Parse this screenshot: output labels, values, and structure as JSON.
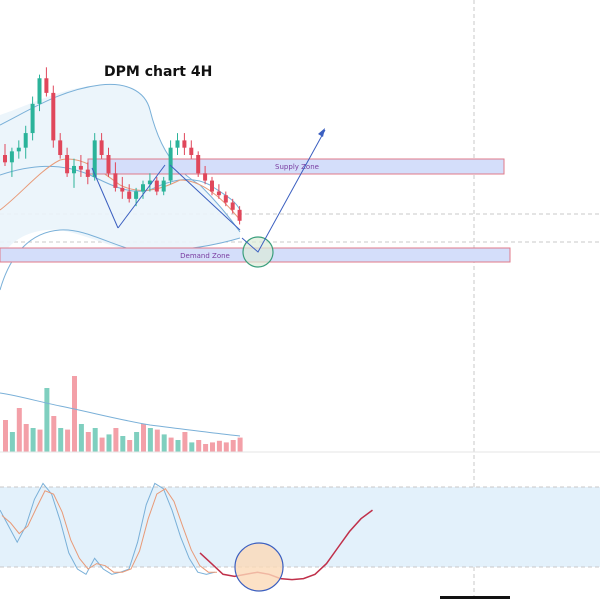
{
  "chart_data": {
    "type": "candlestick",
    "title": "DPM chart 4H",
    "timeframe": "4H",
    "colors": {
      "bull": "#2bb39a",
      "bear": "#e0475b",
      "volume_bull": "#7fcfbf",
      "volume_bear": "#f3a0a8",
      "bollinger": "#7ab0d8",
      "bollinger_fill": "#eaf4fb",
      "ema": "#e89a78",
      "zone_fill": "#d4defa",
      "zone_border": "#e07a8a",
      "arrow": "#3b5fc0",
      "stoch_k": "#7ab0d8",
      "stoch_d": "#e89a78",
      "stoch_forecast": "#c0304a",
      "stoch_band": "#e3f1fb",
      "circle_price_fill": "#dcebd9",
      "circle_price_stroke": "#3a9e7c",
      "circle_stoch_fill": "#fbd9b8",
      "circle_stoch_stroke": "#3b5fc0"
    },
    "candles": [
      {
        "o": 1.06,
        "h": 1.09,
        "l": 1.03,
        "c": 1.04
      },
      {
        "o": 1.04,
        "h": 1.08,
        "l": 1.0,
        "c": 1.07
      },
      {
        "o": 1.07,
        "h": 1.1,
        "l": 1.05,
        "c": 1.08
      },
      {
        "o": 1.08,
        "h": 1.14,
        "l": 1.05,
        "c": 1.12
      },
      {
        "o": 1.12,
        "h": 1.22,
        "l": 1.1,
        "c": 1.2
      },
      {
        "o": 1.2,
        "h": 1.28,
        "l": 1.18,
        "c": 1.27
      },
      {
        "o": 1.27,
        "h": 1.3,
        "l": 1.22,
        "c": 1.23
      },
      {
        "o": 1.23,
        "h": 1.25,
        "l": 1.08,
        "c": 1.1
      },
      {
        "o": 1.1,
        "h": 1.12,
        "l": 1.05,
        "c": 1.06
      },
      {
        "o": 1.06,
        "h": 1.08,
        "l": 1.0,
        "c": 1.01
      },
      {
        "o": 1.01,
        "h": 1.05,
        "l": 0.97,
        "c": 1.03
      },
      {
        "o": 1.03,
        "h": 1.06,
        "l": 1.0,
        "c": 1.02
      },
      {
        "o": 1.02,
        "h": 1.04,
        "l": 0.98,
        "c": 1.0
      },
      {
        "o": 1.0,
        "h": 1.12,
        "l": 0.99,
        "c": 1.1
      },
      {
        "o": 1.1,
        "h": 1.12,
        "l": 1.05,
        "c": 1.06
      },
      {
        "o": 1.06,
        "h": 1.08,
        "l": 1.0,
        "c": 1.01
      },
      {
        "o": 1.01,
        "h": 1.04,
        "l": 0.96,
        "c": 0.97
      },
      {
        "o": 0.97,
        "h": 1.0,
        "l": 0.94,
        "c": 0.96
      },
      {
        "o": 0.96,
        "h": 0.98,
        "l": 0.93,
        "c": 0.94
      },
      {
        "o": 0.94,
        "h": 0.97,
        "l": 0.92,
        "c": 0.96
      },
      {
        "o": 0.96,
        "h": 0.99,
        "l": 0.94,
        "c": 0.98
      },
      {
        "o": 0.98,
        "h": 1.01,
        "l": 0.96,
        "c": 0.99
      },
      {
        "o": 0.99,
        "h": 1.0,
        "l": 0.95,
        "c": 0.96
      },
      {
        "o": 0.96,
        "h": 1.0,
        "l": 0.95,
        "c": 0.99
      },
      {
        "o": 0.99,
        "h": 1.1,
        "l": 0.98,
        "c": 1.08
      },
      {
        "o": 1.08,
        "h": 1.12,
        "l": 1.06,
        "c": 1.1
      },
      {
        "o": 1.1,
        "h": 1.12,
        "l": 1.06,
        "c": 1.08
      },
      {
        "o": 1.08,
        "h": 1.1,
        "l": 1.05,
        "c": 1.06
      },
      {
        "o": 1.06,
        "h": 1.07,
        "l": 1.0,
        "c": 1.01
      },
      {
        "o": 1.01,
        "h": 1.03,
        "l": 0.98,
        "c": 0.99
      },
      {
        "o": 0.99,
        "h": 1.0,
        "l": 0.95,
        "c": 0.96
      },
      {
        "o": 0.96,
        "h": 0.98,
        "l": 0.94,
        "c": 0.95
      },
      {
        "o": 0.95,
        "h": 0.96,
        "l": 0.92,
        "c": 0.93
      },
      {
        "o": 0.93,
        "h": 0.94,
        "l": 0.9,
        "c": 0.91
      },
      {
        "o": 0.91,
        "h": 0.92,
        "l": 0.87,
        "c": 0.88
      }
    ],
    "volumes": [
      {
        "v": 0.4,
        "up": false
      },
      {
        "v": 0.25,
        "up": true
      },
      {
        "v": 0.55,
        "up": false
      },
      {
        "v": 0.35,
        "up": false
      },
      {
        "v": 0.3,
        "up": true
      },
      {
        "v": 0.28,
        "up": false
      },
      {
        "v": 0.8,
        "up": true
      },
      {
        "v": 0.45,
        "up": false
      },
      {
        "v": 0.3,
        "up": true
      },
      {
        "v": 0.28,
        "up": false
      },
      {
        "v": 0.95,
        "up": false
      },
      {
        "v": 0.35,
        "up": true
      },
      {
        "v": 0.25,
        "up": false
      },
      {
        "v": 0.3,
        "up": true
      },
      {
        "v": 0.18,
        "up": false
      },
      {
        "v": 0.22,
        "up": true
      },
      {
        "v": 0.3,
        "up": false
      },
      {
        "v": 0.2,
        "up": true
      },
      {
        "v": 0.15,
        "up": false
      },
      {
        "v": 0.25,
        "up": true
      },
      {
        "v": 0.35,
        "up": false
      },
      {
        "v": 0.3,
        "up": true
      },
      {
        "v": 0.28,
        "up": false
      },
      {
        "v": 0.22,
        "up": true
      },
      {
        "v": 0.18,
        "up": false
      },
      {
        "v": 0.15,
        "up": true
      },
      {
        "v": 0.25,
        "up": false
      },
      {
        "v": 0.12,
        "up": true
      },
      {
        "v": 0.15,
        "up": false
      },
      {
        "v": 0.1,
        "up": false
      },
      {
        "v": 0.12,
        "up": false
      },
      {
        "v": 0.14,
        "up": false
      },
      {
        "v": 0.12,
        "up": false
      },
      {
        "v": 0.15,
        "up": false
      },
      {
        "v": 0.18,
        "up": false
      }
    ],
    "stoch_k": [
      0.7,
      0.55,
      0.4,
      0.55,
      0.8,
      0.95,
      0.85,
      0.6,
      0.3,
      0.15,
      0.1,
      0.25,
      0.15,
      0.1,
      0.12,
      0.15,
      0.4,
      0.75,
      0.95,
      0.9,
      0.7,
      0.45,
      0.25,
      0.12,
      0.1,
      0.12
    ],
    "stoch_d": [
      0.65,
      0.58,
      0.48,
      0.55,
      0.72,
      0.88,
      0.85,
      0.68,
      0.42,
      0.25,
      0.15,
      0.2,
      0.18,
      0.12,
      0.12,
      0.15,
      0.32,
      0.62,
      0.85,
      0.9,
      0.78,
      0.55,
      0.33,
      0.18,
      0.12,
      0.12
    ],
    "stoch_forecast": [
      0.3,
      0.2,
      0.1,
      0.08,
      0.1,
      0.12,
      0.1,
      0.06,
      0.05,
      0.06,
      0.1,
      0.2,
      0.35,
      0.5,
      0.62,
      0.7
    ],
    "zones": [
      {
        "name": "supply",
        "label": "Supply Zone"
      },
      {
        "name": "demand",
        "label": "Demand Zone"
      }
    ]
  }
}
